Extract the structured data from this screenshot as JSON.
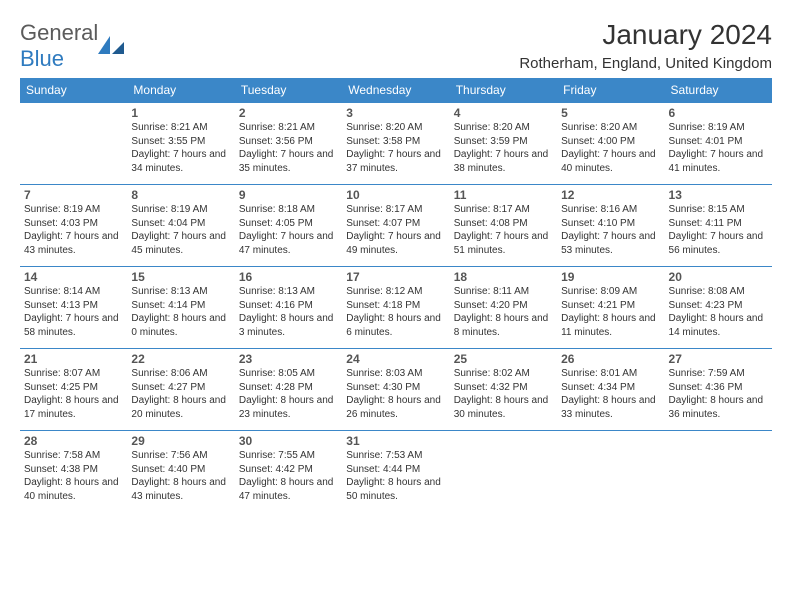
{
  "logo": {
    "word1": "General",
    "word2": "Blue"
  },
  "title": "January 2024",
  "location": "Rotherham, England, United Kingdom",
  "colors": {
    "header_bg": "#3b87c8",
    "header_text": "#ffffff",
    "row_border": "#3b87c8",
    "body_text": "#333333",
    "daynum_text": "#555555",
    "logo_gray": "#5b5b5b",
    "logo_blue": "#2f7bbf",
    "page_bg": "#ffffff"
  },
  "fonts": {
    "month_title_pt": 28,
    "location_pt": 15,
    "weekday_pt": 12,
    "daynum_pt": 12,
    "body_pt": 10,
    "logo_pt": 22
  },
  "weekdays": [
    "Sunday",
    "Monday",
    "Tuesday",
    "Wednesday",
    "Thursday",
    "Friday",
    "Saturday"
  ],
  "weeks": [
    [
      null,
      {
        "n": "1",
        "sr": "8:21 AM",
        "ss": "3:55 PM",
        "dl": "7 hours and 34 minutes."
      },
      {
        "n": "2",
        "sr": "8:21 AM",
        "ss": "3:56 PM",
        "dl": "7 hours and 35 minutes."
      },
      {
        "n": "3",
        "sr": "8:20 AM",
        "ss": "3:58 PM",
        "dl": "7 hours and 37 minutes."
      },
      {
        "n": "4",
        "sr": "8:20 AM",
        "ss": "3:59 PM",
        "dl": "7 hours and 38 minutes."
      },
      {
        "n": "5",
        "sr": "8:20 AM",
        "ss": "4:00 PM",
        "dl": "7 hours and 40 minutes."
      },
      {
        "n": "6",
        "sr": "8:19 AM",
        "ss": "4:01 PM",
        "dl": "7 hours and 41 minutes."
      }
    ],
    [
      {
        "n": "7",
        "sr": "8:19 AM",
        "ss": "4:03 PM",
        "dl": "7 hours and 43 minutes."
      },
      {
        "n": "8",
        "sr": "8:19 AM",
        "ss": "4:04 PM",
        "dl": "7 hours and 45 minutes."
      },
      {
        "n": "9",
        "sr": "8:18 AM",
        "ss": "4:05 PM",
        "dl": "7 hours and 47 minutes."
      },
      {
        "n": "10",
        "sr": "8:17 AM",
        "ss": "4:07 PM",
        "dl": "7 hours and 49 minutes."
      },
      {
        "n": "11",
        "sr": "8:17 AM",
        "ss": "4:08 PM",
        "dl": "7 hours and 51 minutes."
      },
      {
        "n": "12",
        "sr": "8:16 AM",
        "ss": "4:10 PM",
        "dl": "7 hours and 53 minutes."
      },
      {
        "n": "13",
        "sr": "8:15 AM",
        "ss": "4:11 PM",
        "dl": "7 hours and 56 minutes."
      }
    ],
    [
      {
        "n": "14",
        "sr": "8:14 AM",
        "ss": "4:13 PM",
        "dl": "7 hours and 58 minutes."
      },
      {
        "n": "15",
        "sr": "8:13 AM",
        "ss": "4:14 PM",
        "dl": "8 hours and 0 minutes."
      },
      {
        "n": "16",
        "sr": "8:13 AM",
        "ss": "4:16 PM",
        "dl": "8 hours and 3 minutes."
      },
      {
        "n": "17",
        "sr": "8:12 AM",
        "ss": "4:18 PM",
        "dl": "8 hours and 6 minutes."
      },
      {
        "n": "18",
        "sr": "8:11 AM",
        "ss": "4:20 PM",
        "dl": "8 hours and 8 minutes."
      },
      {
        "n": "19",
        "sr": "8:09 AM",
        "ss": "4:21 PM",
        "dl": "8 hours and 11 minutes."
      },
      {
        "n": "20",
        "sr": "8:08 AM",
        "ss": "4:23 PM",
        "dl": "8 hours and 14 minutes."
      }
    ],
    [
      {
        "n": "21",
        "sr": "8:07 AM",
        "ss": "4:25 PM",
        "dl": "8 hours and 17 minutes."
      },
      {
        "n": "22",
        "sr": "8:06 AM",
        "ss": "4:27 PM",
        "dl": "8 hours and 20 minutes."
      },
      {
        "n": "23",
        "sr": "8:05 AM",
        "ss": "4:28 PM",
        "dl": "8 hours and 23 minutes."
      },
      {
        "n": "24",
        "sr": "8:03 AM",
        "ss": "4:30 PM",
        "dl": "8 hours and 26 minutes."
      },
      {
        "n": "25",
        "sr": "8:02 AM",
        "ss": "4:32 PM",
        "dl": "8 hours and 30 minutes."
      },
      {
        "n": "26",
        "sr": "8:01 AM",
        "ss": "4:34 PM",
        "dl": "8 hours and 33 minutes."
      },
      {
        "n": "27",
        "sr": "7:59 AM",
        "ss": "4:36 PM",
        "dl": "8 hours and 36 minutes."
      }
    ],
    [
      {
        "n": "28",
        "sr": "7:58 AM",
        "ss": "4:38 PM",
        "dl": "8 hours and 40 minutes."
      },
      {
        "n": "29",
        "sr": "7:56 AM",
        "ss": "4:40 PM",
        "dl": "8 hours and 43 minutes."
      },
      {
        "n": "30",
        "sr": "7:55 AM",
        "ss": "4:42 PM",
        "dl": "8 hours and 47 minutes."
      },
      {
        "n": "31",
        "sr": "7:53 AM",
        "ss": "4:44 PM",
        "dl": "8 hours and 50 minutes."
      },
      null,
      null,
      null
    ]
  ],
  "labels": {
    "sunrise_prefix": "Sunrise: ",
    "sunset_prefix": "Sunset: ",
    "daylight_prefix": "Daylight: "
  }
}
